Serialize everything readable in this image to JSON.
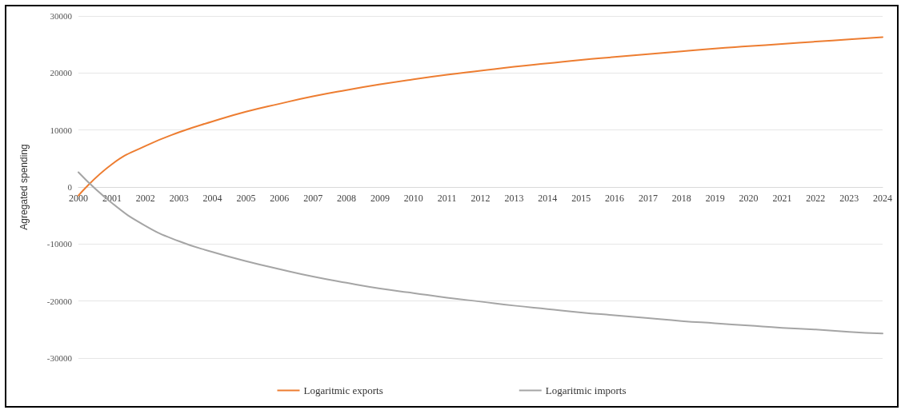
{
  "chart_data": {
    "type": "line",
    "ylabel": "Agregated spending",
    "categories": [
      "2000",
      "2001",
      "2002",
      "2003",
      "2004",
      "2005",
      "2006",
      "2007",
      "2008",
      "2009",
      "2010",
      "2011",
      "2012",
      "2013",
      "2014",
      "2015",
      "2016",
      "2017",
      "2018",
      "2019",
      "2020",
      "2021",
      "2022",
      "2023",
      "2024"
    ],
    "series": [
      {
        "name": "Logaritmic exports",
        "color": "#ed7d31",
        "values": [
          -1500,
          4000,
          7200,
          9600,
          11500,
          13200,
          14600,
          15900,
          17000,
          18000,
          18900,
          19700,
          20400,
          21100,
          21700,
          22300,
          22800,
          23300,
          23800,
          24300,
          24700,
          25100,
          25500,
          25900,
          26300
        ]
      },
      {
        "name": "Logaritmic imports",
        "color": "#a5a5a5",
        "values": [
          2600,
          -2800,
          -6800,
          -9500,
          -11400,
          -13000,
          -14400,
          -15700,
          -16800,
          -17800,
          -18600,
          -19400,
          -20100,
          -20800,
          -21400,
          -22000,
          -22500,
          -23000,
          -23500,
          -23900,
          -24300,
          -24700,
          -25000,
          -25400,
          -25700
        ]
      }
    ],
    "ylim": [
      -30000,
      30000
    ],
    "yticks": [
      -30000,
      -20000,
      -10000,
      0,
      10000,
      20000,
      30000
    ],
    "grid": "y",
    "legend": "bottom",
    "marker": "none",
    "line_style": "solid"
  }
}
